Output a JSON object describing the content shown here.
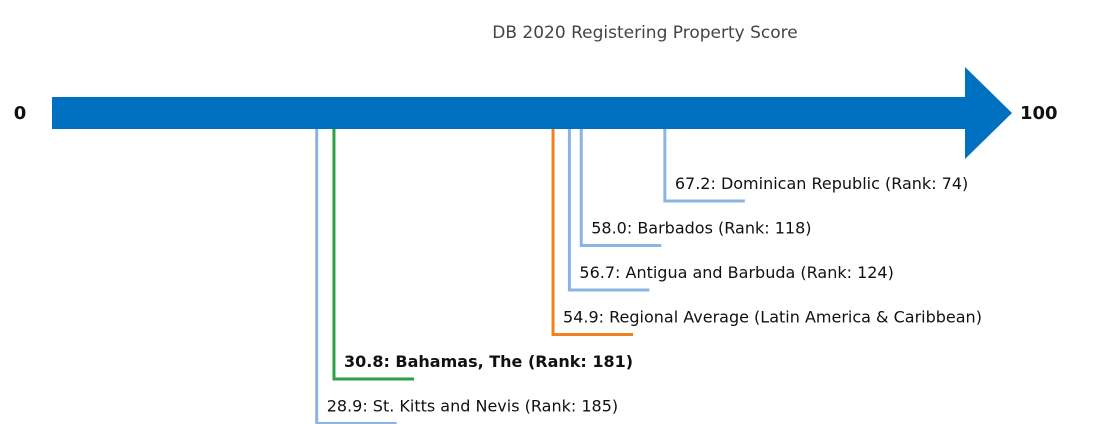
{
  "chart_data": {
    "type": "number-line",
    "title": "DB 2020 Registering Property Score",
    "xlim": [
      0,
      100
    ],
    "xticks": [
      0,
      100
    ],
    "axis_color": "#0070c0",
    "items": [
      {
        "label": "67.2: Dominican Republic (Rank: 74)",
        "value": 67.2,
        "color": "#8cb4e2",
        "bold": false
      },
      {
        "label": "58.0: Barbados (Rank: 118)",
        "value": 58.0,
        "color": "#8cb4e2",
        "bold": false
      },
      {
        "label": "56.7: Antigua and Barbuda (Rank: 124)",
        "value": 56.7,
        "color": "#8cb4e2",
        "bold": false
      },
      {
        "label": "54.9: Regional Average (Latin America & Caribbean)",
        "value": 54.9,
        "color": "#f0821e",
        "bold": false
      },
      {
        "label": "30.8: Bahamas, The (Rank: 181)",
        "value": 30.8,
        "color": "#2ca044",
        "bold": true
      },
      {
        "label": "28.9: St. Kitts and Nevis (Rank: 185)",
        "value": 28.9,
        "color": "#8cb4e2",
        "bold": false
      }
    ]
  }
}
